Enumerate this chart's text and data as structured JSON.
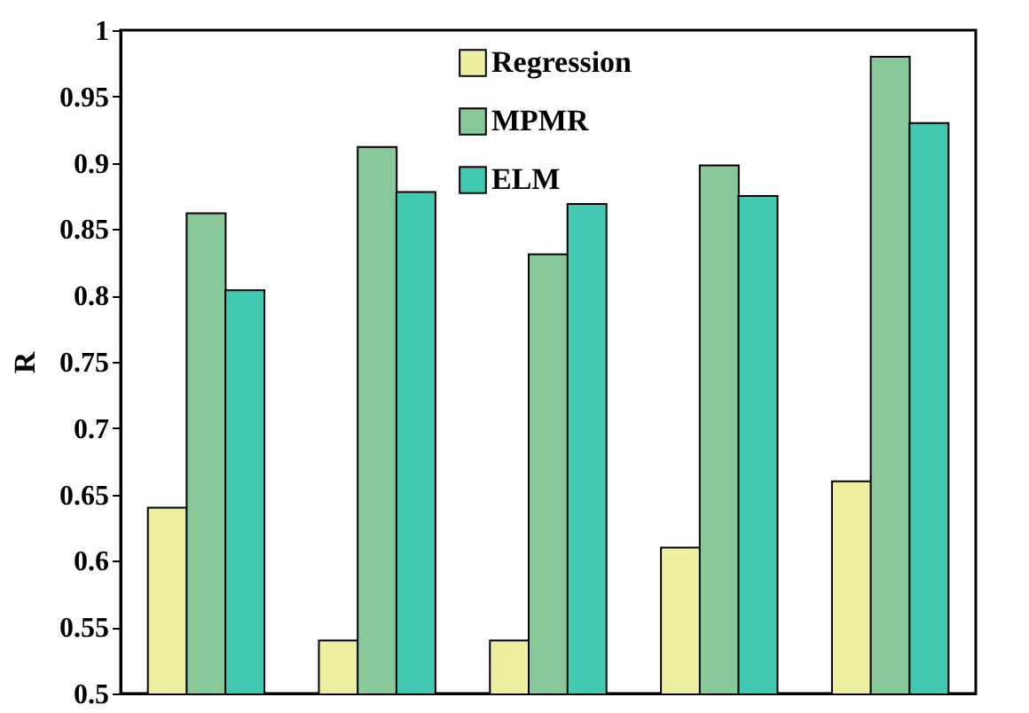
{
  "chart_data": {
    "type": "bar",
    "ylabel": "R",
    "categories": [
      null,
      null,
      null,
      null,
      null
    ],
    "series": [
      {
        "name": "Regression",
        "color": "#eef0a0",
        "values": [
          0.64,
          0.54,
          0.54,
          0.61,
          0.66
        ]
      },
      {
        "name": "MPMR",
        "color": "#88c898",
        "values": [
          0.862,
          0.912,
          0.831,
          0.898,
          0.98
        ]
      },
      {
        "name": "ELM",
        "color": "#40c8b0",
        "values": [
          0.804,
          0.878,
          0.869,
          0.875,
          0.93
        ]
      }
    ],
    "ylim": [
      0.5,
      1
    ],
    "yticks": [
      0.5,
      0.55,
      0.6,
      0.65,
      0.7,
      0.75,
      0.8,
      0.85,
      0.9,
      0.95,
      1
    ],
    "grid": false,
    "legend": "top",
    "tick_labels": "y"
  }
}
